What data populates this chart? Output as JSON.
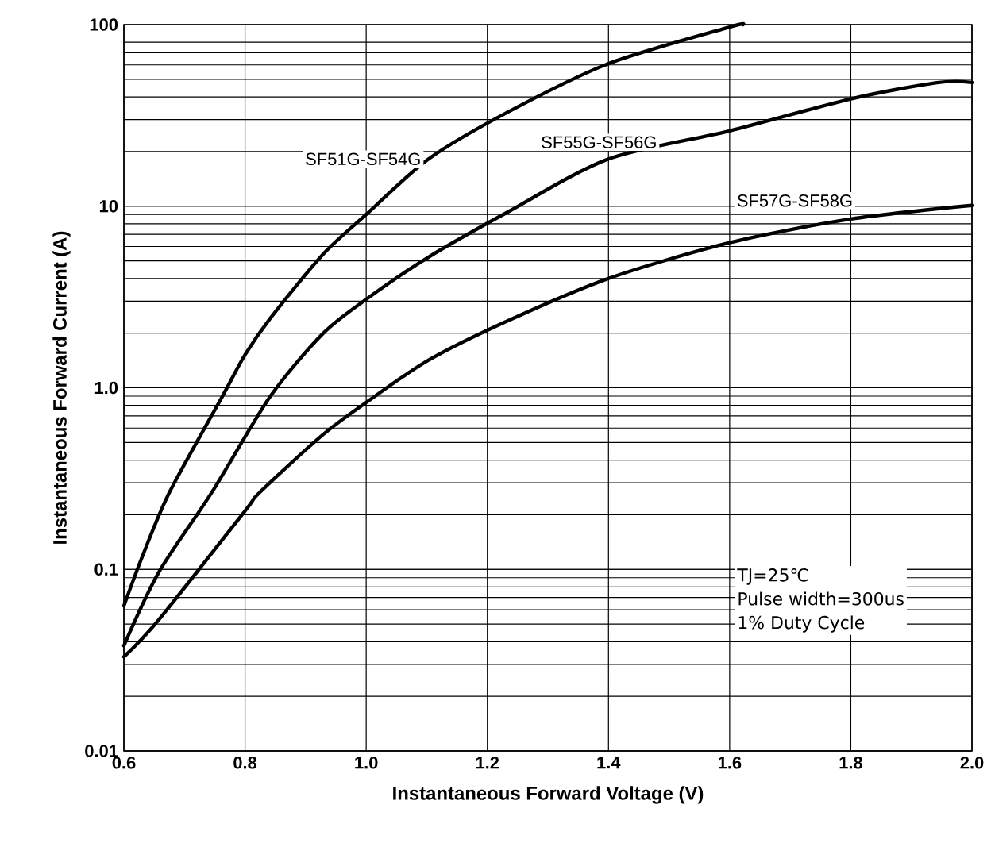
{
  "chart_data": {
    "type": "line",
    "xlabel": "Instantaneous Forward Voltage (V)",
    "ylabel": "Instantaneous Forward Current (A)",
    "log": "y",
    "grid": true,
    "xlim": [
      0.6,
      2.0
    ],
    "ylim": [
      0.01,
      100
    ],
    "xticks": [
      0.6,
      0.8,
      {
        "value": 1.0,
        "label": "1.0"
      },
      1.2,
      1.4,
      1.6,
      1.8,
      {
        "value": 2.0,
        "label": "2.0"
      }
    ],
    "yticks": [
      0.01,
      0.1,
      {
        "value": 1,
        "label": "1.0"
      },
      10,
      100
    ],
    "series": [
      {
        "name": "SF51G-SF54G",
        "color": "#000000",
        "x": [
          0.6,
          0.631,
          0.675,
          0.762,
          0.8,
          0.841,
          0.928,
          1.0,
          1.103,
          1.234,
          1.4,
          1.6,
          1.622
        ],
        "values": [
          0.063,
          0.119,
          0.265,
          0.89,
          1.52,
          2.4,
          5.4,
          9.0,
          18.2,
          33,
          61,
          97,
          100
        ]
      },
      {
        "name": "SF55G-SF56G",
        "color": "#000000",
        "x": [
          0.6,
          0.658,
          0.745,
          0.841,
          0.928,
          1.0,
          1.103,
          1.234,
          1.4,
          1.6,
          1.8,
          1.942,
          2.0
        ],
        "values": [
          0.038,
          0.097,
          0.265,
          0.89,
          1.98,
          3.07,
          5.25,
          9.3,
          18.2,
          26,
          39,
          47.9,
          48
        ]
      },
      {
        "name": "SF57G-SF58G",
        "color": "#000000",
        "x": [
          0.6,
          0.658,
          0.8,
          0.824,
          0.928,
          1.0,
          1.103,
          1.234,
          1.4,
          1.6,
          1.8,
          2.0
        ],
        "values": [
          0.033,
          0.053,
          0.21,
          0.265,
          0.55,
          0.83,
          1.42,
          2.34,
          4.0,
          6.3,
          8.5,
          10.1
        ]
      }
    ],
    "annotations": [
      "TJ=25℃",
      "Pulse width=300us",
      "1% Duty Cycle"
    ]
  }
}
